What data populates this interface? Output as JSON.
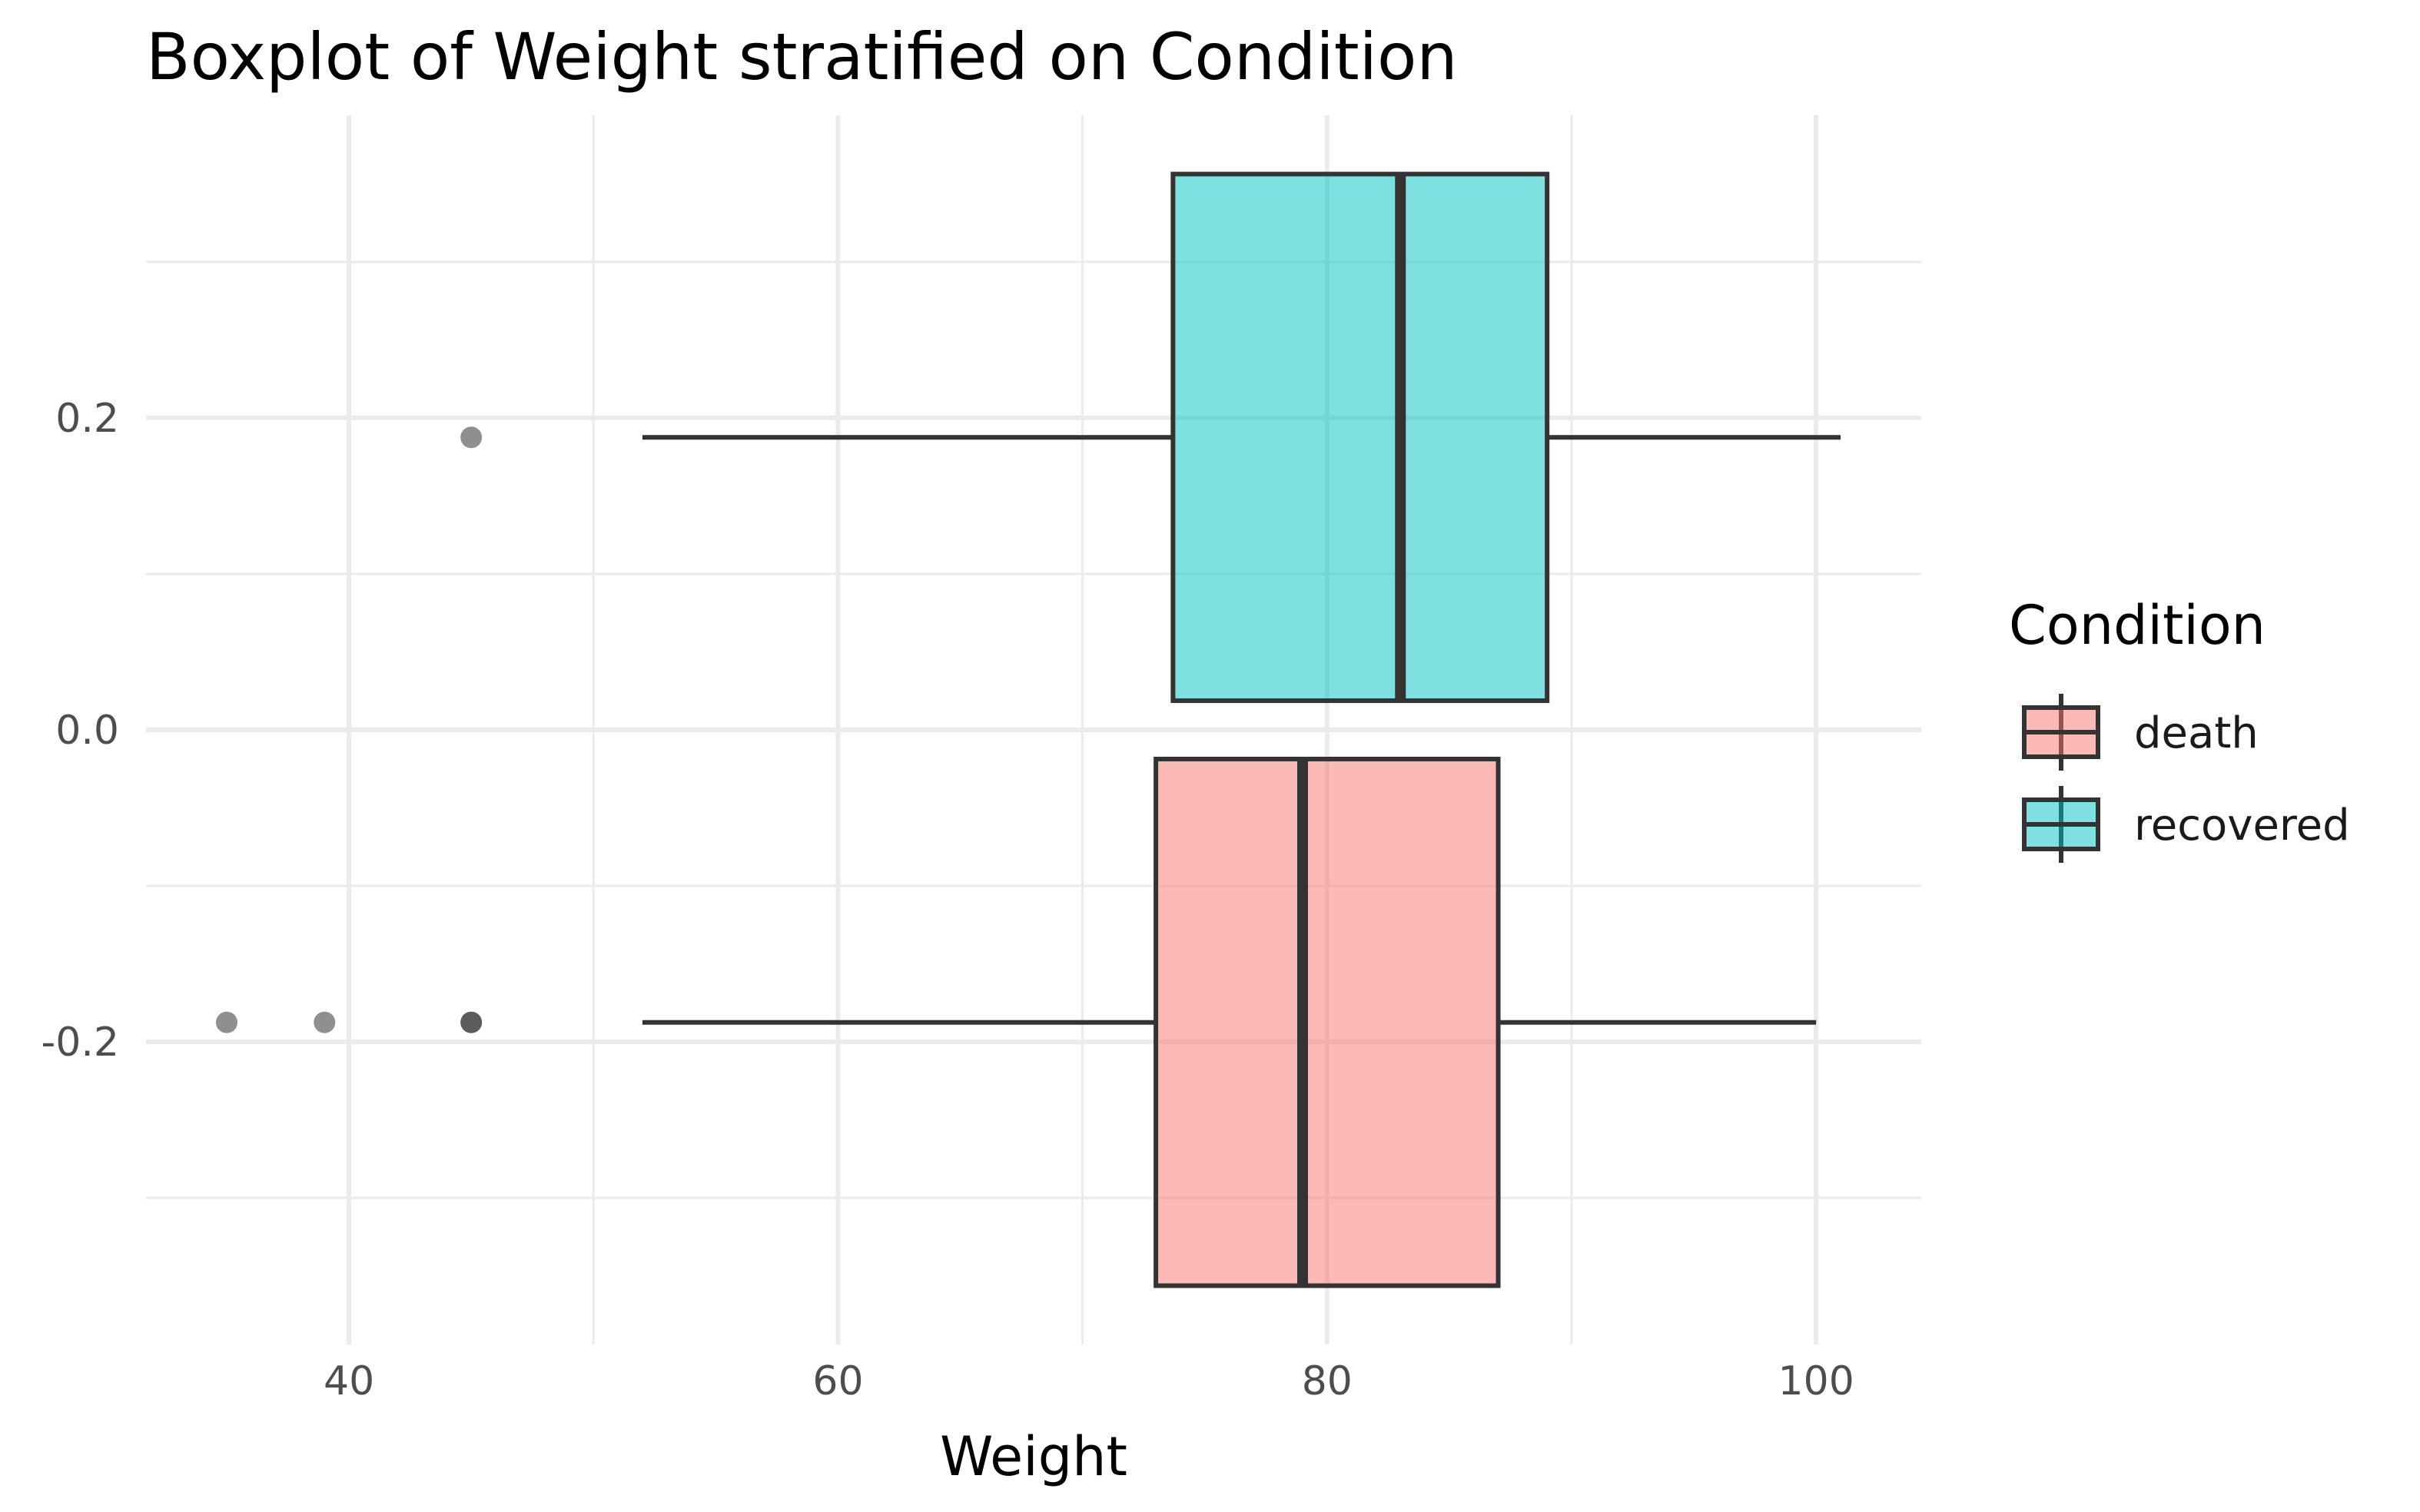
{
  "chart_data": {
    "type": "boxplot",
    "orientation": "horizontal",
    "title": "Boxplot of Weight stratified on Condition",
    "xlabel": "Weight",
    "ylabel": "",
    "xlim": [
      31.7,
      104.3
    ],
    "ylim": [
      -0.394,
      0.394
    ],
    "x_ticks": [
      40,
      60,
      80,
      100
    ],
    "x_tick_labels": [
      "40",
      "60",
      "80",
      "100"
    ],
    "y_ticks": [
      0.2,
      0.0,
      -0.2
    ],
    "y_tick_labels": [
      "0.2",
      "0.0",
      "-0.2"
    ],
    "grid": true,
    "legend": {
      "title": "Condition",
      "position": "right"
    },
    "series": [
      {
        "name": "recovered",
        "y_center": 0.1875,
        "box_halfwidth": 0.1688,
        "color": "#00C1C6",
        "fill_opacity": 0.5,
        "whisker_low": 52,
        "q1": 73.7,
        "median": 83,
        "q3": 89,
        "whisker_high": 101,
        "outliers": [
          45
        ]
      },
      {
        "name": "death",
        "y_center": -0.1875,
        "box_halfwidth": 0.1688,
        "color": "#F8766D",
        "fill_opacity": 0.5,
        "whisker_low": 52,
        "q1": 73,
        "median": 79,
        "q3": 87,
        "whisker_high": 100,
        "outliers": [
          35,
          39,
          45,
          45
        ]
      }
    ]
  }
}
